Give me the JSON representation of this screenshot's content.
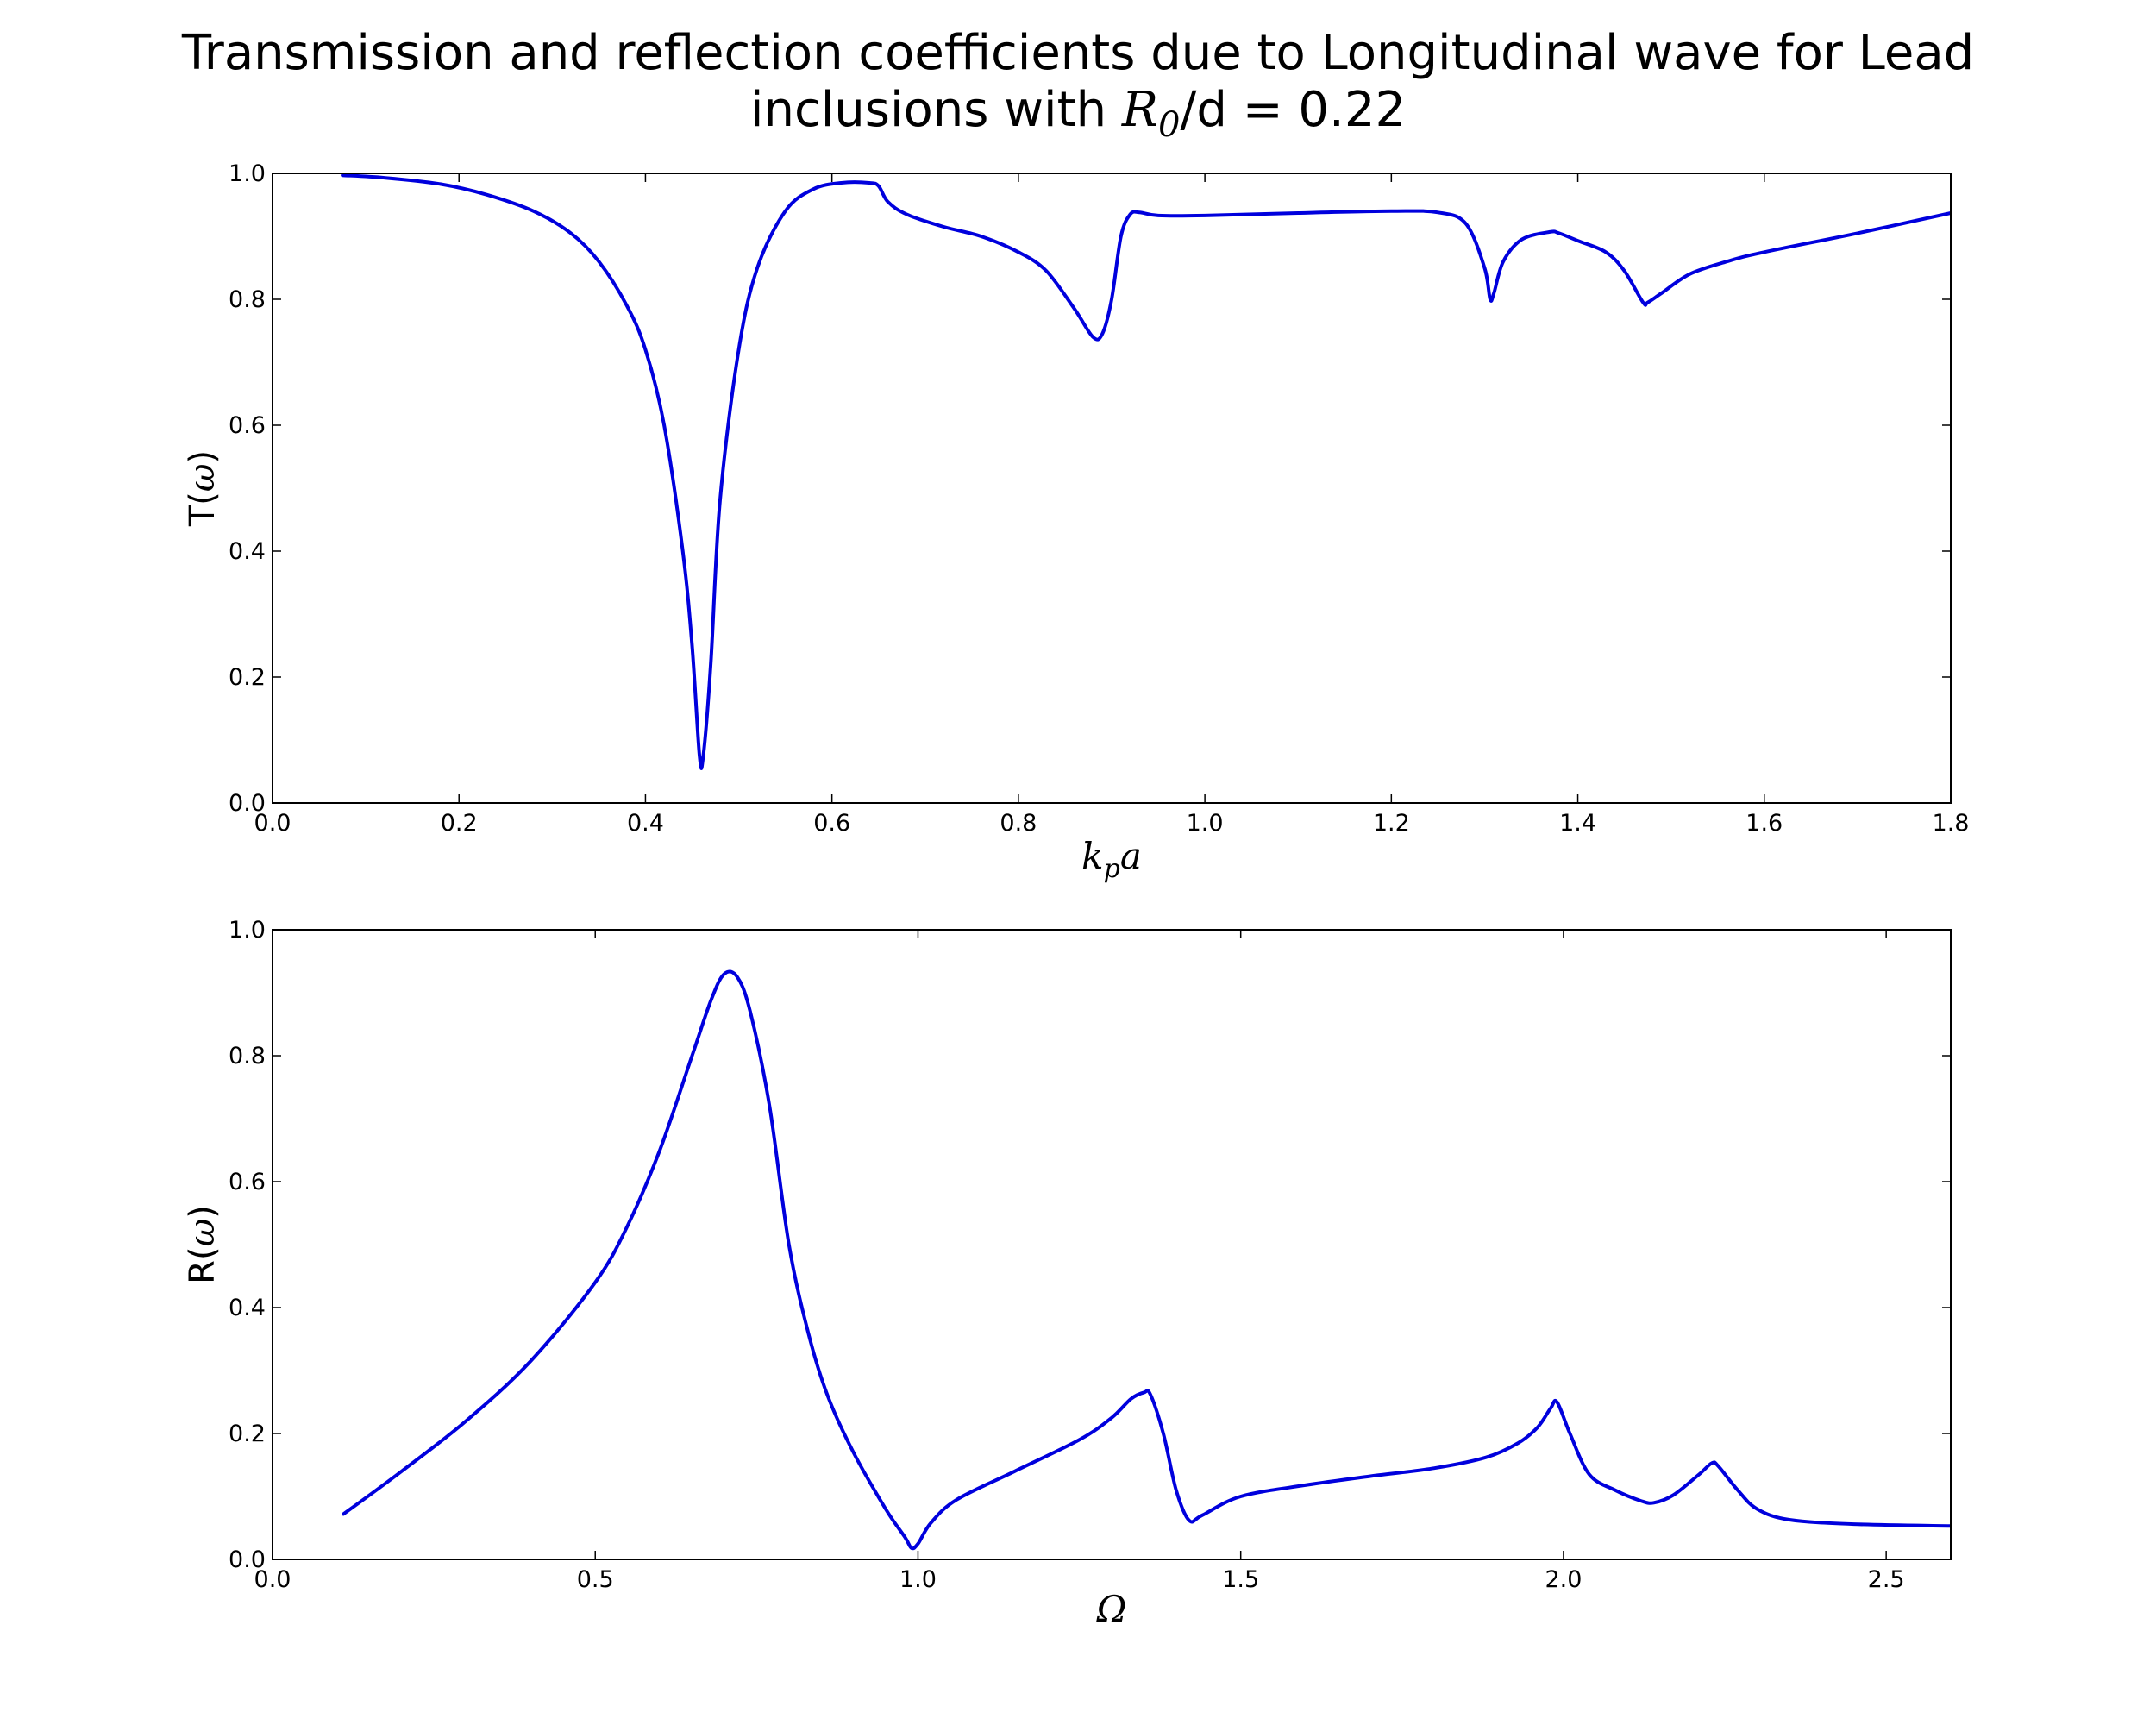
{
  "title": {
    "line1": "Transmission and reflection coefficients due to Longitudinal wave for Lead",
    "line2_prefix": "inclusions with ",
    "line2_math_R": "R",
    "line2_math_sub": "0",
    "line2_suffix": "/d = 0.22"
  },
  "colors": {
    "line": "#0000dd",
    "axes": "#000000",
    "background": "#ffffff"
  },
  "chart_data": [
    {
      "id": "transmission",
      "type": "line",
      "xlabel": "k_p a",
      "xlabel_math": {
        "base": "k",
        "sub": "p",
        "tail": "a"
      },
      "ylabel": "T(ω)",
      "ylabel_parts": {
        "pre": "T(",
        "math": "ω",
        "post": ")"
      },
      "xlim": [
        0.0,
        1.8
      ],
      "ylim": [
        0.0,
        1.0
      ],
      "xticks": [
        "0.0",
        "0.2",
        "0.4",
        "0.6",
        "0.8",
        "1.0",
        "1.2",
        "1.4",
        "1.6",
        "1.8"
      ],
      "yticks": [
        "0.0",
        "0.2",
        "0.4",
        "0.6",
        "0.8",
        "1.0"
      ],
      "grid": false,
      "series": [
        {
          "color": "#0000dd",
          "x": [
            0.075,
            0.12,
            0.18,
            0.23,
            0.28,
            0.32,
            0.35,
            0.38,
            0.4,
            0.42,
            0.44,
            0.45,
            0.458,
            0.462,
            0.47,
            0.48,
            0.5,
            0.52,
            0.55,
            0.58,
            0.61,
            0.64,
            0.65,
            0.66,
            0.68,
            0.72,
            0.76,
            0.8,
            0.83,
            0.86,
            0.88,
            0.89,
            0.9,
            0.91,
            0.92,
            0.93,
            0.95,
            1.0,
            1.1,
            1.2,
            1.25,
            1.28,
            1.3,
            1.306,
            1.31,
            1.32,
            1.34,
            1.37,
            1.38,
            1.4,
            1.43,
            1.45,
            1.47,
            1.475,
            1.49,
            1.52,
            1.56,
            1.6,
            1.7,
            1.8
          ],
          "y": [
            0.997,
            0.993,
            0.983,
            0.966,
            0.94,
            0.905,
            0.86,
            0.79,
            0.72,
            0.6,
            0.4,
            0.25,
            0.075,
            0.075,
            0.22,
            0.48,
            0.72,
            0.85,
            0.94,
            0.975,
            0.985,
            0.985,
            0.98,
            0.955,
            0.935,
            0.915,
            0.9,
            0.875,
            0.845,
            0.785,
            0.74,
            0.745,
            0.8,
            0.9,
            0.935,
            0.938,
            0.933,
            0.933,
            0.937,
            0.94,
            0.938,
            0.92,
            0.85,
            0.8,
            0.81,
            0.86,
            0.895,
            0.907,
            0.905,
            0.893,
            0.875,
            0.845,
            0.795,
            0.795,
            0.81,
            0.84,
            0.86,
            0.875,
            0.905,
            0.937
          ]
        }
      ]
    },
    {
      "id": "reflection",
      "type": "line",
      "xlabel": "Ω",
      "ylabel": "R(ω)",
      "ylabel_parts": {
        "pre": "R(",
        "math": "ω",
        "post": ")"
      },
      "xlim": [
        0.0,
        2.6
      ],
      "ylim": [
        0.0,
        1.0
      ],
      "xticks": [
        "0.0",
        "0.5",
        "1.0",
        "1.5",
        "2.0",
        "2.5"
      ],
      "yticks": [
        "0.0",
        "0.2",
        "0.4",
        "0.6",
        "0.8",
        "1.0"
      ],
      "grid": false,
      "series": [
        {
          "color": "#0000dd",
          "x": [
            0.11,
            0.2,
            0.3,
            0.4,
            0.5,
            0.55,
            0.6,
            0.65,
            0.68,
            0.7,
            0.72,
            0.74,
            0.77,
            0.8,
            0.83,
            0.86,
            0.9,
            0.95,
            0.98,
            0.99,
            1.0,
            1.02,
            1.06,
            1.15,
            1.25,
            1.3,
            1.33,
            1.35,
            1.36,
            1.38,
            1.4,
            1.42,
            1.44,
            1.5,
            1.6,
            1.7,
            1.8,
            1.88,
            1.93,
            1.96,
            1.98,
            1.99,
            2.01,
            2.04,
            2.08,
            2.12,
            2.14,
            2.17,
            2.21,
            2.23,
            2.24,
            2.27,
            2.3,
            2.35,
            2.45,
            2.6
          ],
          "y": [
            0.072,
            0.14,
            0.22,
            0.315,
            0.44,
            0.53,
            0.65,
            0.8,
            0.89,
            0.93,
            0.925,
            0.87,
            0.72,
            0.5,
            0.36,
            0.26,
            0.17,
            0.08,
            0.035,
            0.018,
            0.025,
            0.058,
            0.095,
            0.14,
            0.19,
            0.225,
            0.255,
            0.265,
            0.262,
            0.2,
            0.11,
            0.062,
            0.07,
            0.1,
            0.118,
            0.132,
            0.145,
            0.162,
            0.185,
            0.21,
            0.24,
            0.25,
            0.2,
            0.135,
            0.11,
            0.093,
            0.09,
            0.102,
            0.135,
            0.153,
            0.148,
            0.11,
            0.08,
            0.063,
            0.056,
            0.053
          ]
        }
      ]
    }
  ]
}
